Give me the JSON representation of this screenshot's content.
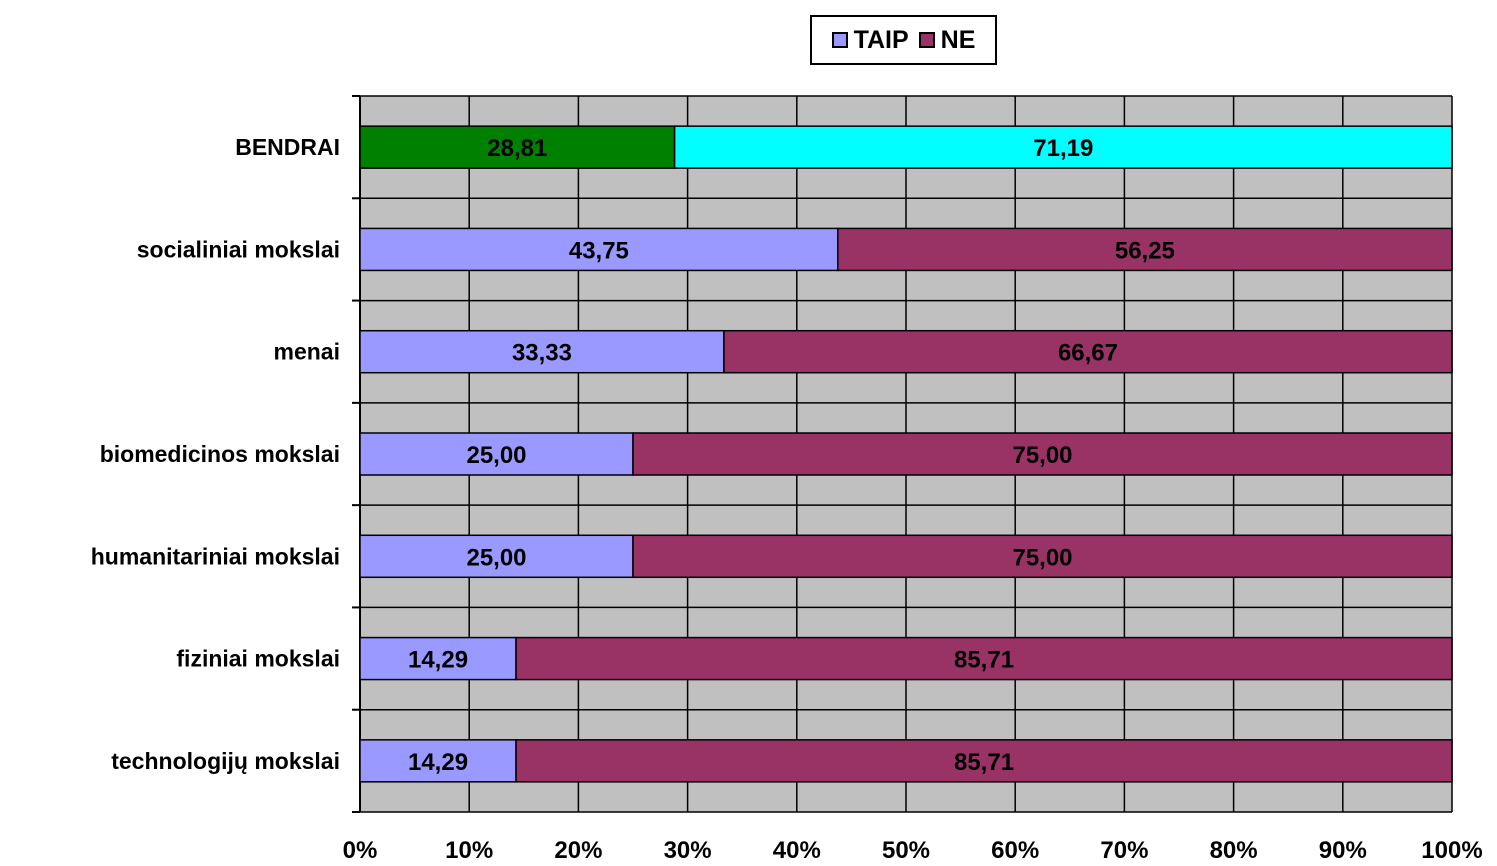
{
  "chart_data": {
    "type": "bar",
    "orientation": "horizontal",
    "stacked": "percent",
    "categories": [
      "BENDRAI",
      "socialiniai mokslai",
      "menai",
      "biomedicinos mokslai",
      "humanitariniai mokslai",
      "fiziniai mokslai",
      "technologijų mokslai"
    ],
    "series": [
      {
        "name": "TAIP",
        "values": [
          28.81,
          43.75,
          33.33,
          25.0,
          25.0,
          14.29,
          14.29
        ],
        "labels": [
          "28,81",
          "43,75",
          "33,33",
          "25,00",
          "25,00",
          "14,29",
          "14,29"
        ],
        "color": "#9999ff"
      },
      {
        "name": "NE",
        "values": [
          71.19,
          56.25,
          66.67,
          75.0,
          75.0,
          85.71,
          85.71
        ],
        "labels": [
          "71,19",
          "56,25",
          "66,67",
          "75,00",
          "75,00",
          "85,71",
          "85,71"
        ],
        "color": "#993366"
      }
    ],
    "highlight": {
      "category": "BENDRAI",
      "colors": {
        "TAIP": "#008000",
        "NE": "#00ffff"
      }
    },
    "x_ticks": [
      "0%",
      "10%",
      "20%",
      "30%",
      "40%",
      "50%",
      "60%",
      "70%",
      "80%",
      "90%",
      "100%"
    ],
    "xlim": [
      0,
      100
    ],
    "grid": true,
    "plot_background": "#c0c0c0",
    "legend_position": "top"
  }
}
